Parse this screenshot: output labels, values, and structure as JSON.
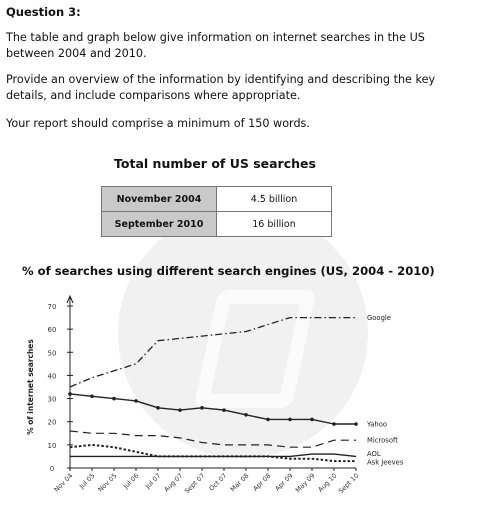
{
  "question": {
    "title": "Question 3:",
    "para1": "The table and graph below give information on internet searches in the US between 2004 and 2010.",
    "para2": "Provide an overview of the information by identifying and describing the key details, and include comparisons where appropriate.",
    "para3": "Your report should comprise a minimum of 150 words."
  },
  "table": {
    "title": "Total number of US searches",
    "rows": [
      {
        "label": "November 2004",
        "value": "4.5 billion"
      },
      {
        "label": "September 2010",
        "value": "16 billion"
      }
    ]
  },
  "chart_data": {
    "type": "line",
    "title": "% of searches using different search engines (US, 2004 - 2010)",
    "xlabel": "",
    "ylabel": "% of internet searches",
    "ylim": [
      0,
      70
    ],
    "yticks": [
      0,
      10,
      20,
      30,
      40,
      50,
      60,
      70
    ],
    "grid": false,
    "legend": "labels at right end of each line",
    "categories": [
      "Nov 04",
      "Jul 05",
      "Nov 05",
      "Jul 06",
      "Jul 07",
      "Aug 07",
      "Sept 07",
      "Oct 07",
      "Mar 08",
      "Apr 08",
      "Apr 09",
      "May 09",
      "Aug 10",
      "Sept 10"
    ],
    "series": [
      {
        "name": "Google",
        "style": "dashdot",
        "values": [
          35,
          39,
          42,
          45,
          55,
          56,
          57,
          58,
          59,
          62,
          65,
          65,
          65,
          65
        ]
      },
      {
        "name": "Yahoo",
        "style": "solid",
        "values": [
          32,
          31,
          30,
          29,
          26,
          25,
          26,
          25,
          23,
          21,
          21,
          21,
          19,
          19
        ]
      },
      {
        "name": "Microsoft",
        "style": "longdash",
        "values": [
          16,
          15,
          15,
          14,
          14,
          13,
          11,
          10,
          10,
          10,
          9,
          9,
          12,
          12
        ]
      },
      {
        "name": "AOL",
        "style": "solid",
        "values": [
          5,
          5,
          5,
          5,
          5,
          5,
          5,
          5,
          5,
          5,
          5,
          6,
          6,
          5
        ]
      },
      {
        "name": "Ask Jeeves",
        "style": "dotted",
        "values": [
          9,
          10,
          9,
          7,
          5,
          5,
          5,
          5,
          5,
          5,
          4,
          4,
          3,
          3
        ]
      }
    ]
  }
}
